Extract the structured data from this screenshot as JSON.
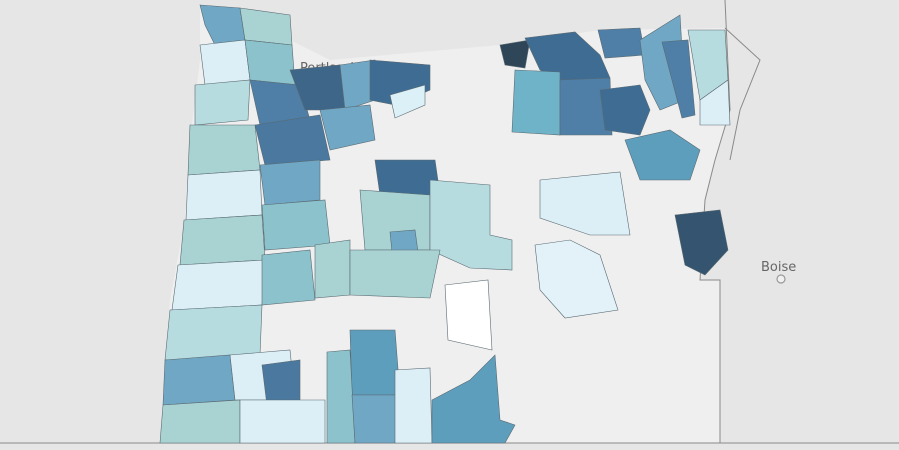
{
  "map": {
    "labels": [
      {
        "name": "Portland"
      },
      {
        "name": "Boise"
      }
    ]
  }
}
